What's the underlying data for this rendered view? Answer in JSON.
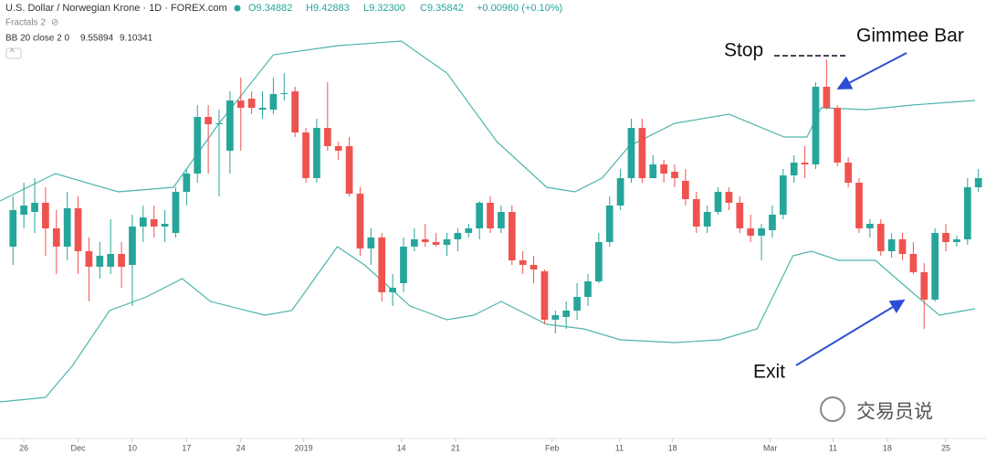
{
  "chart_data": {
    "type": "candlestick",
    "title": "U.S. Dollar / Norwegian Krone · 1D · FOREX.com",
    "header_values": [
      "O9.34882",
      "H9.42883",
      "L9.32300",
      "C9.35842",
      "+0.00960 (+0.10%)"
    ],
    "indicators": [
      "Fractals 2",
      "BB 20 close 2 0",
      "9.55894",
      "9.10341"
    ],
    "annotations": [
      "Stop",
      "Gimmee Bar",
      "Exit"
    ],
    "watermark": "交易员说",
    "up_color": "#26a69a",
    "down_color": "#ef5350",
    "band_color": "#4db6ac",
    "xlim": [
      -1.2,
      89.7
    ],
    "ylim": [
      20,
      500
    ],
    "xticks": [
      {
        "value": 1,
        "label": "26"
      },
      {
        "value": 6,
        "label": "Dec"
      },
      {
        "value": 11,
        "label": "10"
      },
      {
        "value": 16,
        "label": "17"
      },
      {
        "value": 21,
        "label": "24"
      },
      {
        "value": 26.8,
        "label": "2019"
      },
      {
        "value": 35.8,
        "label": "14"
      },
      {
        "value": 40.8,
        "label": "21"
      },
      {
        "value": 49.7,
        "label": "Feb"
      },
      {
        "value": 55.9,
        "label": "11"
      },
      {
        "value": 60.8,
        "label": "18"
      },
      {
        "value": 69.8,
        "label": "Mar"
      },
      {
        "value": 75.6,
        "label": "11"
      },
      {
        "value": 80.6,
        "label": "18"
      },
      {
        "value": 86,
        "label": "25"
      }
    ],
    "open": [
      230,
      265,
      268,
      278,
      250,
      230,
      272,
      225,
      208,
      208,
      222,
      210,
      252,
      260,
      252,
      245,
      290,
      310,
      372,
      364,
      335,
      390,
      392,
      380,
      380,
      397,
      400,
      355,
      305,
      360,
      340,
      340,
      288,
      228,
      240,
      180,
      190,
      230,
      238,
      235,
      232,
      238,
      245,
      250,
      278,
      250,
      268,
      215,
      210,
      203,
      150,
      153,
      160,
      175,
      192,
      235,
      275,
      305,
      360,
      305,
      320,
      312,
      302,
      282,
      252,
      268,
      290,
      278,
      250,
      242,
      248,
      265,
      308,
      322,
      320,
      405,
      382,
      322,
      300,
      250,
      255,
      225,
      238,
      222,
      202,
      172,
      245,
      235,
      238,
      295
    ],
    "high": [
      285,
      300,
      305,
      295,
      270,
      290,
      285,
      240,
      235,
      260,
      235,
      265,
      275,
      275,
      270,
      295,
      315,
      385,
      385,
      380,
      400,
      415,
      400,
      400,
      415,
      420,
      405,
      360,
      370,
      410,
      345,
      350,
      295,
      250,
      245,
      200,
      240,
      250,
      255,
      245,
      245,
      250,
      255,
      280,
      285,
      275,
      275,
      225,
      220,
      205,
      160,
      170,
      190,
      200,
      245,
      285,
      315,
      370,
      370,
      330,
      325,
      320,
      315,
      290,
      275,
      295,
      295,
      285,
      265,
      255,
      275,
      315,
      330,
      340,
      410,
      435,
      385,
      328,
      305,
      260,
      260,
      245,
      245,
      235,
      212,
      250,
      255,
      242,
      305,
      315
    ],
    "low": [
      210,
      250,
      245,
      220,
      200,
      215,
      200,
      170,
      195,
      200,
      185,
      165,
      235,
      240,
      235,
      240,
      275,
      300,
      310,
      285,
      310,
      335,
      375,
      370,
      375,
      390,
      350,
      300,
      300,
      335,
      325,
      285,
      220,
      210,
      170,
      165,
      180,
      225,
      230,
      230,
      220,
      225,
      240,
      238,
      245,
      245,
      210,
      200,
      190,
      145,
      135,
      140,
      150,
      165,
      190,
      230,
      270,
      300,
      300,
      305,
      300,
      295,
      275,
      245,
      245,
      265,
      270,
      245,
      235,
      215,
      240,
      260,
      300,
      305,
      315,
      380,
      318,
      295,
      245,
      240,
      220,
      218,
      215,
      200,
      140,
      170,
      225,
      230,
      232,
      290
    ],
    "close": [
      270,
      275,
      278,
      250,
      230,
      272,
      225,
      208,
      220,
      222,
      208,
      252,
      262,
      252,
      255,
      290,
      310,
      372,
      364,
      365,
      390,
      382,
      382,
      382,
      397,
      398,
      355,
      305,
      360,
      340,
      335,
      288,
      228,
      240,
      180,
      185,
      230,
      238,
      235,
      232,
      238,
      245,
      250,
      278,
      250,
      268,
      215,
      210,
      205,
      150,
      155,
      160,
      175,
      192,
      235,
      275,
      305,
      360,
      305,
      320,
      310,
      305,
      282,
      252,
      268,
      290,
      278,
      250,
      242,
      250,
      265,
      308,
      322,
      320,
      405,
      382,
      322,
      300,
      250,
      255,
      225,
      238,
      222,
      202,
      172,
      245,
      235,
      238,
      295,
      305
    ],
    "bands": [
      {
        "x": [
          -1.2,
          3.9,
          9.7,
          14.8,
          19,
          24,
          29.9,
          35.8,
          40,
          44.6,
          49.2,
          51.8,
          54.3,
          56.8,
          61,
          66,
          71.1,
          73.2,
          74.5,
          78.7,
          82.9,
          88.7
        ],
        "values": [
          280,
          310,
          290,
          295,
          365,
          440,
          450,
          455,
          420,
          345,
          295,
          290,
          305,
          340,
          365,
          375,
          350,
          350,
          382,
          380,
          385,
          390
        ]
      },
      {
        "x": [
          -1.2,
          3,
          5.5,
          8.9,
          12.3,
          15.6,
          18.2,
          23.2,
          25.7,
          29.9,
          32.4,
          36.6,
          40,
          42.5,
          45,
          49.2,
          52.6,
          56,
          61,
          65.2,
          68.6,
          71.9,
          73.6,
          76.1,
          79.5,
          82.9,
          85.4,
          88.7
        ],
        "values": [
          60,
          65,
          100,
          160,
          175,
          195,
          170,
          155,
          160,
          230,
          210,
          165,
          150,
          155,
          170,
          145,
          140,
          128,
          125,
          128,
          140,
          220,
          225,
          215,
          215,
          180,
          155,
          162
        ]
      }
    ]
  }
}
